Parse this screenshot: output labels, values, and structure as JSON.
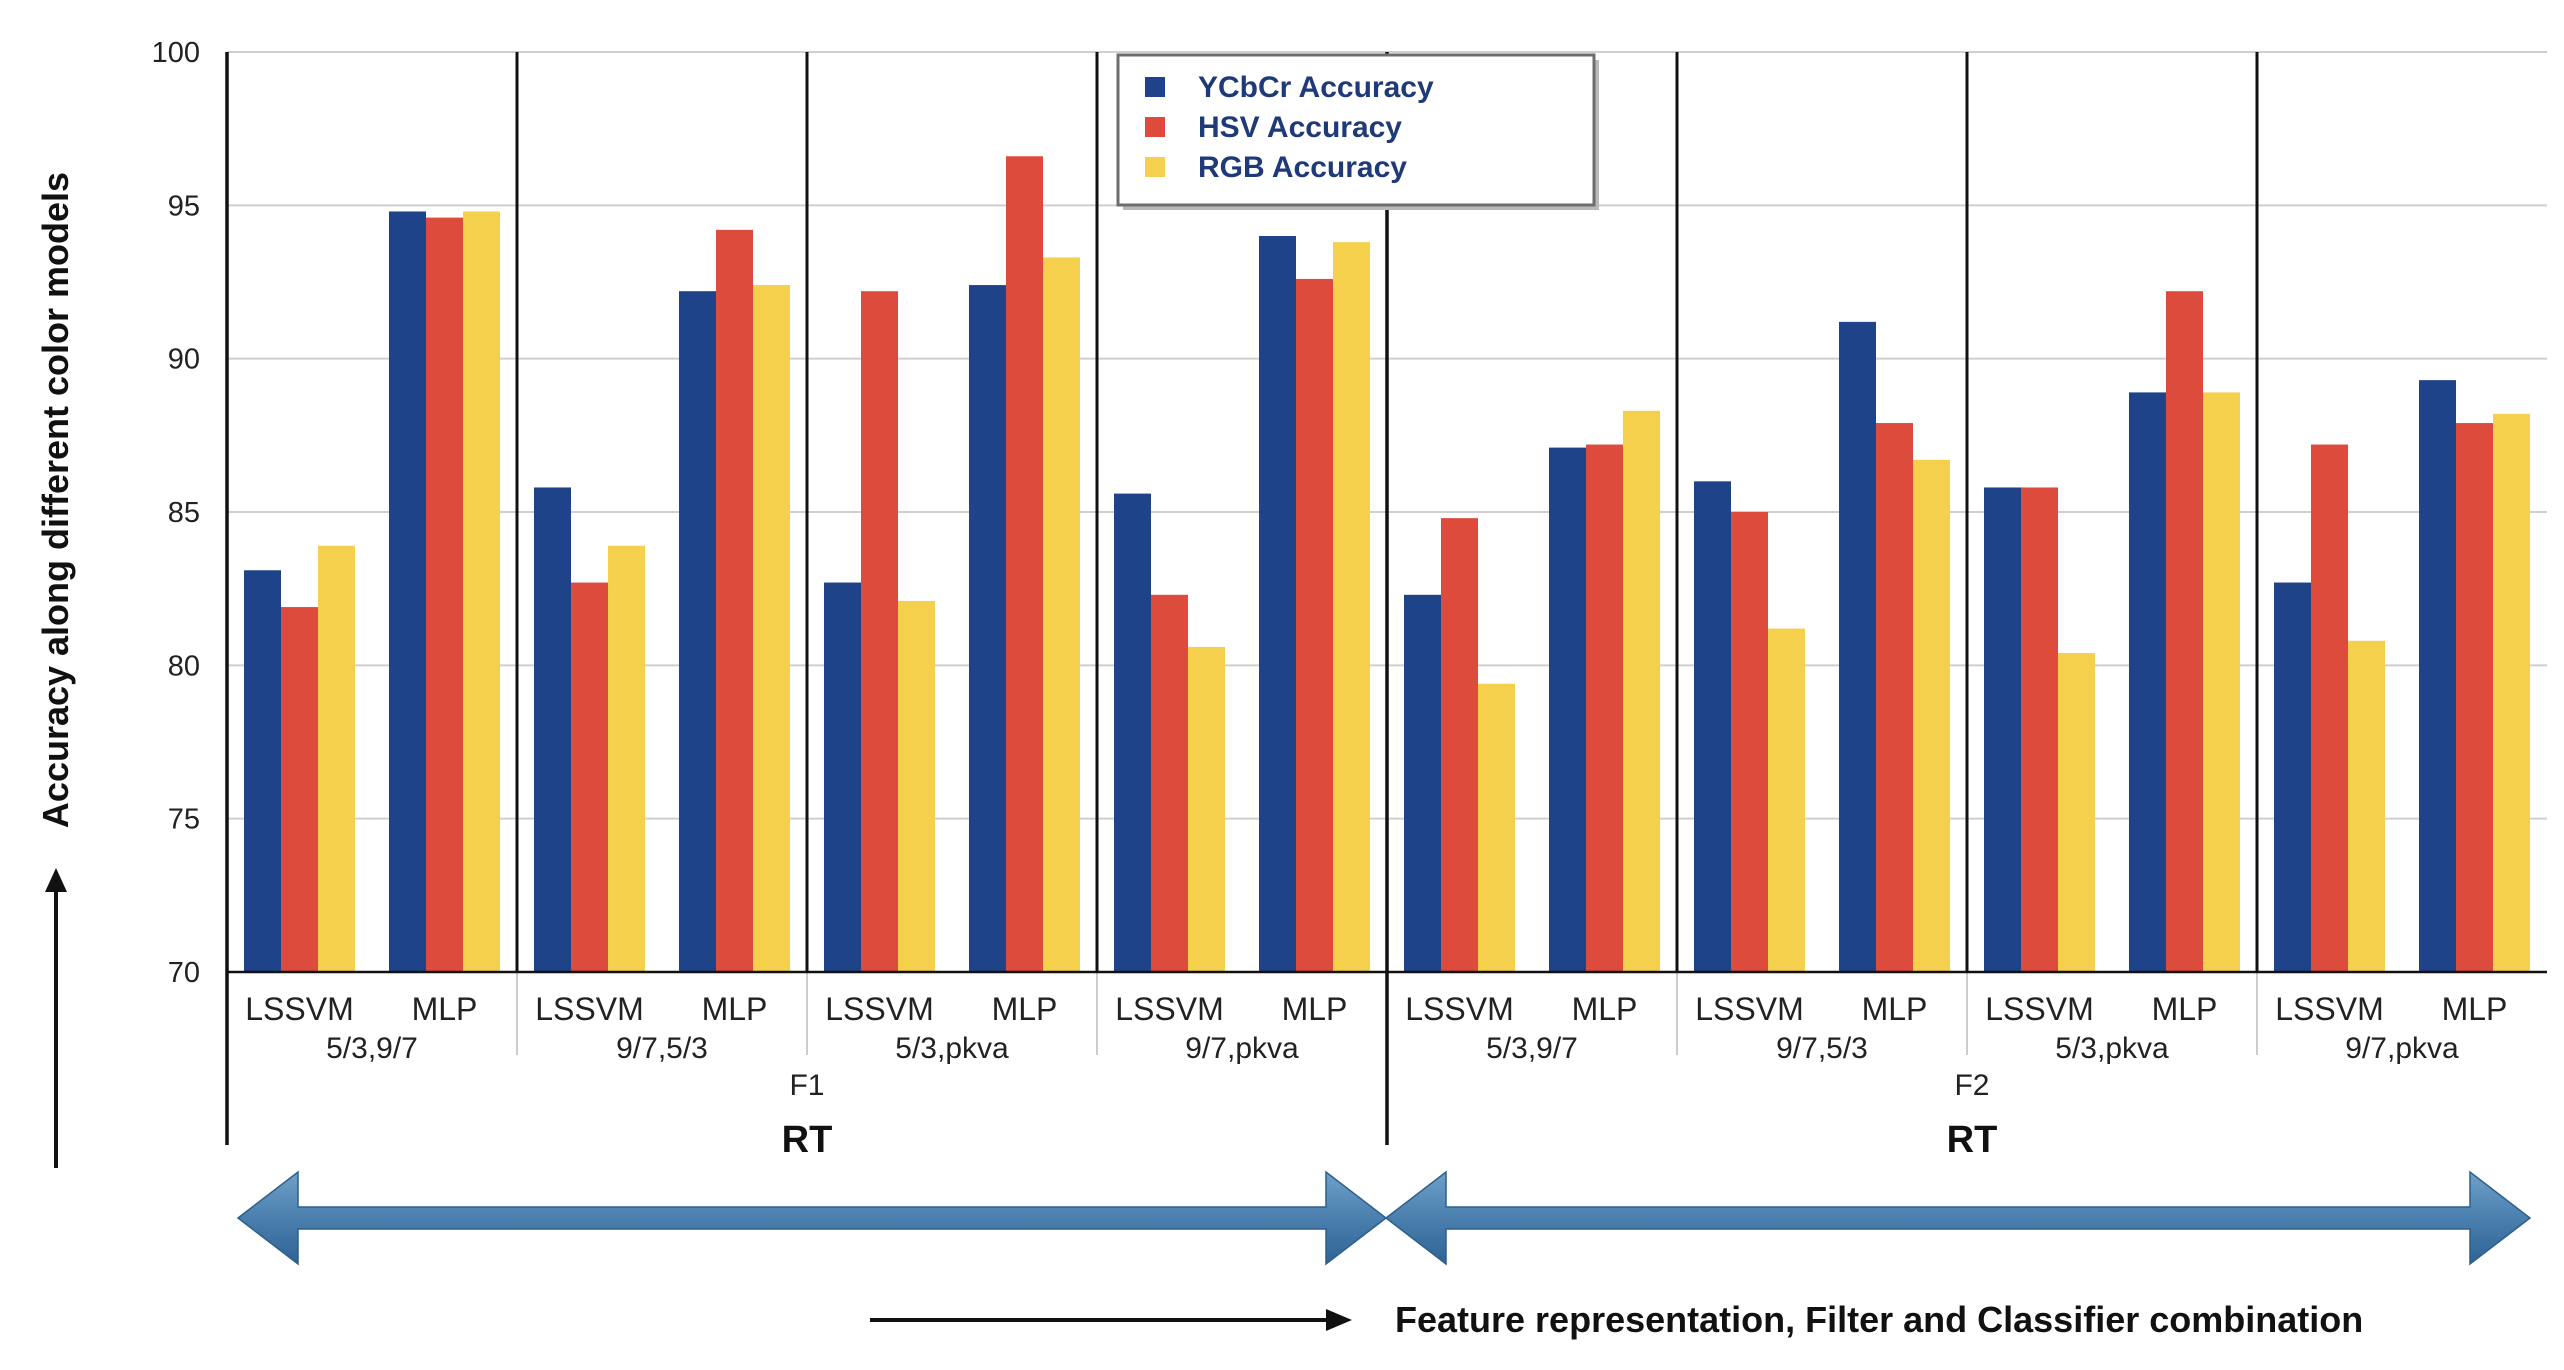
{
  "chart_data": {
    "type": "bar",
    "ylabel": "Accuracy along different color models",
    "xlabel": "Feature representation, Filter and Classifier combination",
    "ylim": [
      70,
      100
    ],
    "yticks": [
      "70",
      "75",
      "80",
      "85",
      "90",
      "95",
      "100"
    ],
    "grid": true,
    "legend_position": "top-center",
    "series": [
      {
        "name": "YCbCr Accuracy",
        "color": "#1f4388"
      },
      {
        "name": "HSV Accuracy",
        "color": "#dc4b3c"
      },
      {
        "name": "RGB Accuracy",
        "color": "#f5d04d"
      }
    ],
    "features": [
      {
        "label": "F1",
        "group_label": "RT",
        "combos": [
          {
            "label": "5/3,9/7",
            "classifiers": [
              {
                "label": "LSSVM",
                "values": [
                  83.1,
                  81.9,
                  83.9
                ]
              },
              {
                "label": "MLP",
                "values": [
                  94.8,
                  94.6,
                  94.8
                ]
              }
            ]
          },
          {
            "label": "9/7,5/3",
            "classifiers": [
              {
                "label": "LSSVM",
                "values": [
                  85.8,
                  82.7,
                  83.9
                ]
              },
              {
                "label": "MLP",
                "values": [
                  92.2,
                  94.2,
                  92.4
                ]
              }
            ]
          },
          {
            "label": "5/3,pkva",
            "classifiers": [
              {
                "label": "LSSVM",
                "values": [
                  82.7,
                  92.2,
                  82.1
                ]
              },
              {
                "label": "MLP",
                "values": [
                  92.4,
                  96.6,
                  93.3
                ]
              }
            ]
          },
          {
            "label": "9/7,pkva",
            "classifiers": [
              {
                "label": "LSSVM",
                "values": [
                  85.6,
                  82.3,
                  80.6
                ]
              },
              {
                "label": "MLP",
                "values": [
                  94.0,
                  92.6,
                  93.8
                ]
              }
            ]
          }
        ]
      },
      {
        "label": "F2",
        "group_label": "RT",
        "combos": [
          {
            "label": "5/3,9/7",
            "classifiers": [
              {
                "label": "LSSVM",
                "values": [
                  82.3,
                  84.8,
                  79.4
                ]
              },
              {
                "label": "MLP",
                "values": [
                  87.1,
                  87.2,
                  88.3
                ]
              }
            ]
          },
          {
            "label": "9/7,5/3",
            "classifiers": [
              {
                "label": "LSSVM",
                "values": [
                  86.0,
                  85.0,
                  81.2
                ]
              },
              {
                "label": "MLP",
                "values": [
                  91.2,
                  87.9,
                  86.7
                ]
              }
            ]
          },
          {
            "label": "5/3,pkva",
            "classifiers": [
              {
                "label": "LSSVM",
                "values": [
                  85.8,
                  85.8,
                  80.4
                ]
              },
              {
                "label": "MLP",
                "values": [
                  88.9,
                  92.2,
                  88.9
                ]
              }
            ]
          },
          {
            "label": "9/7,pkva",
            "classifiers": [
              {
                "label": "LSSVM",
                "values": [
                  82.7,
                  87.2,
                  80.8
                ]
              },
              {
                "label": "MLP",
                "values": [
                  89.3,
                  87.9,
                  88.2
                ]
              }
            ]
          }
        ]
      }
    ]
  }
}
